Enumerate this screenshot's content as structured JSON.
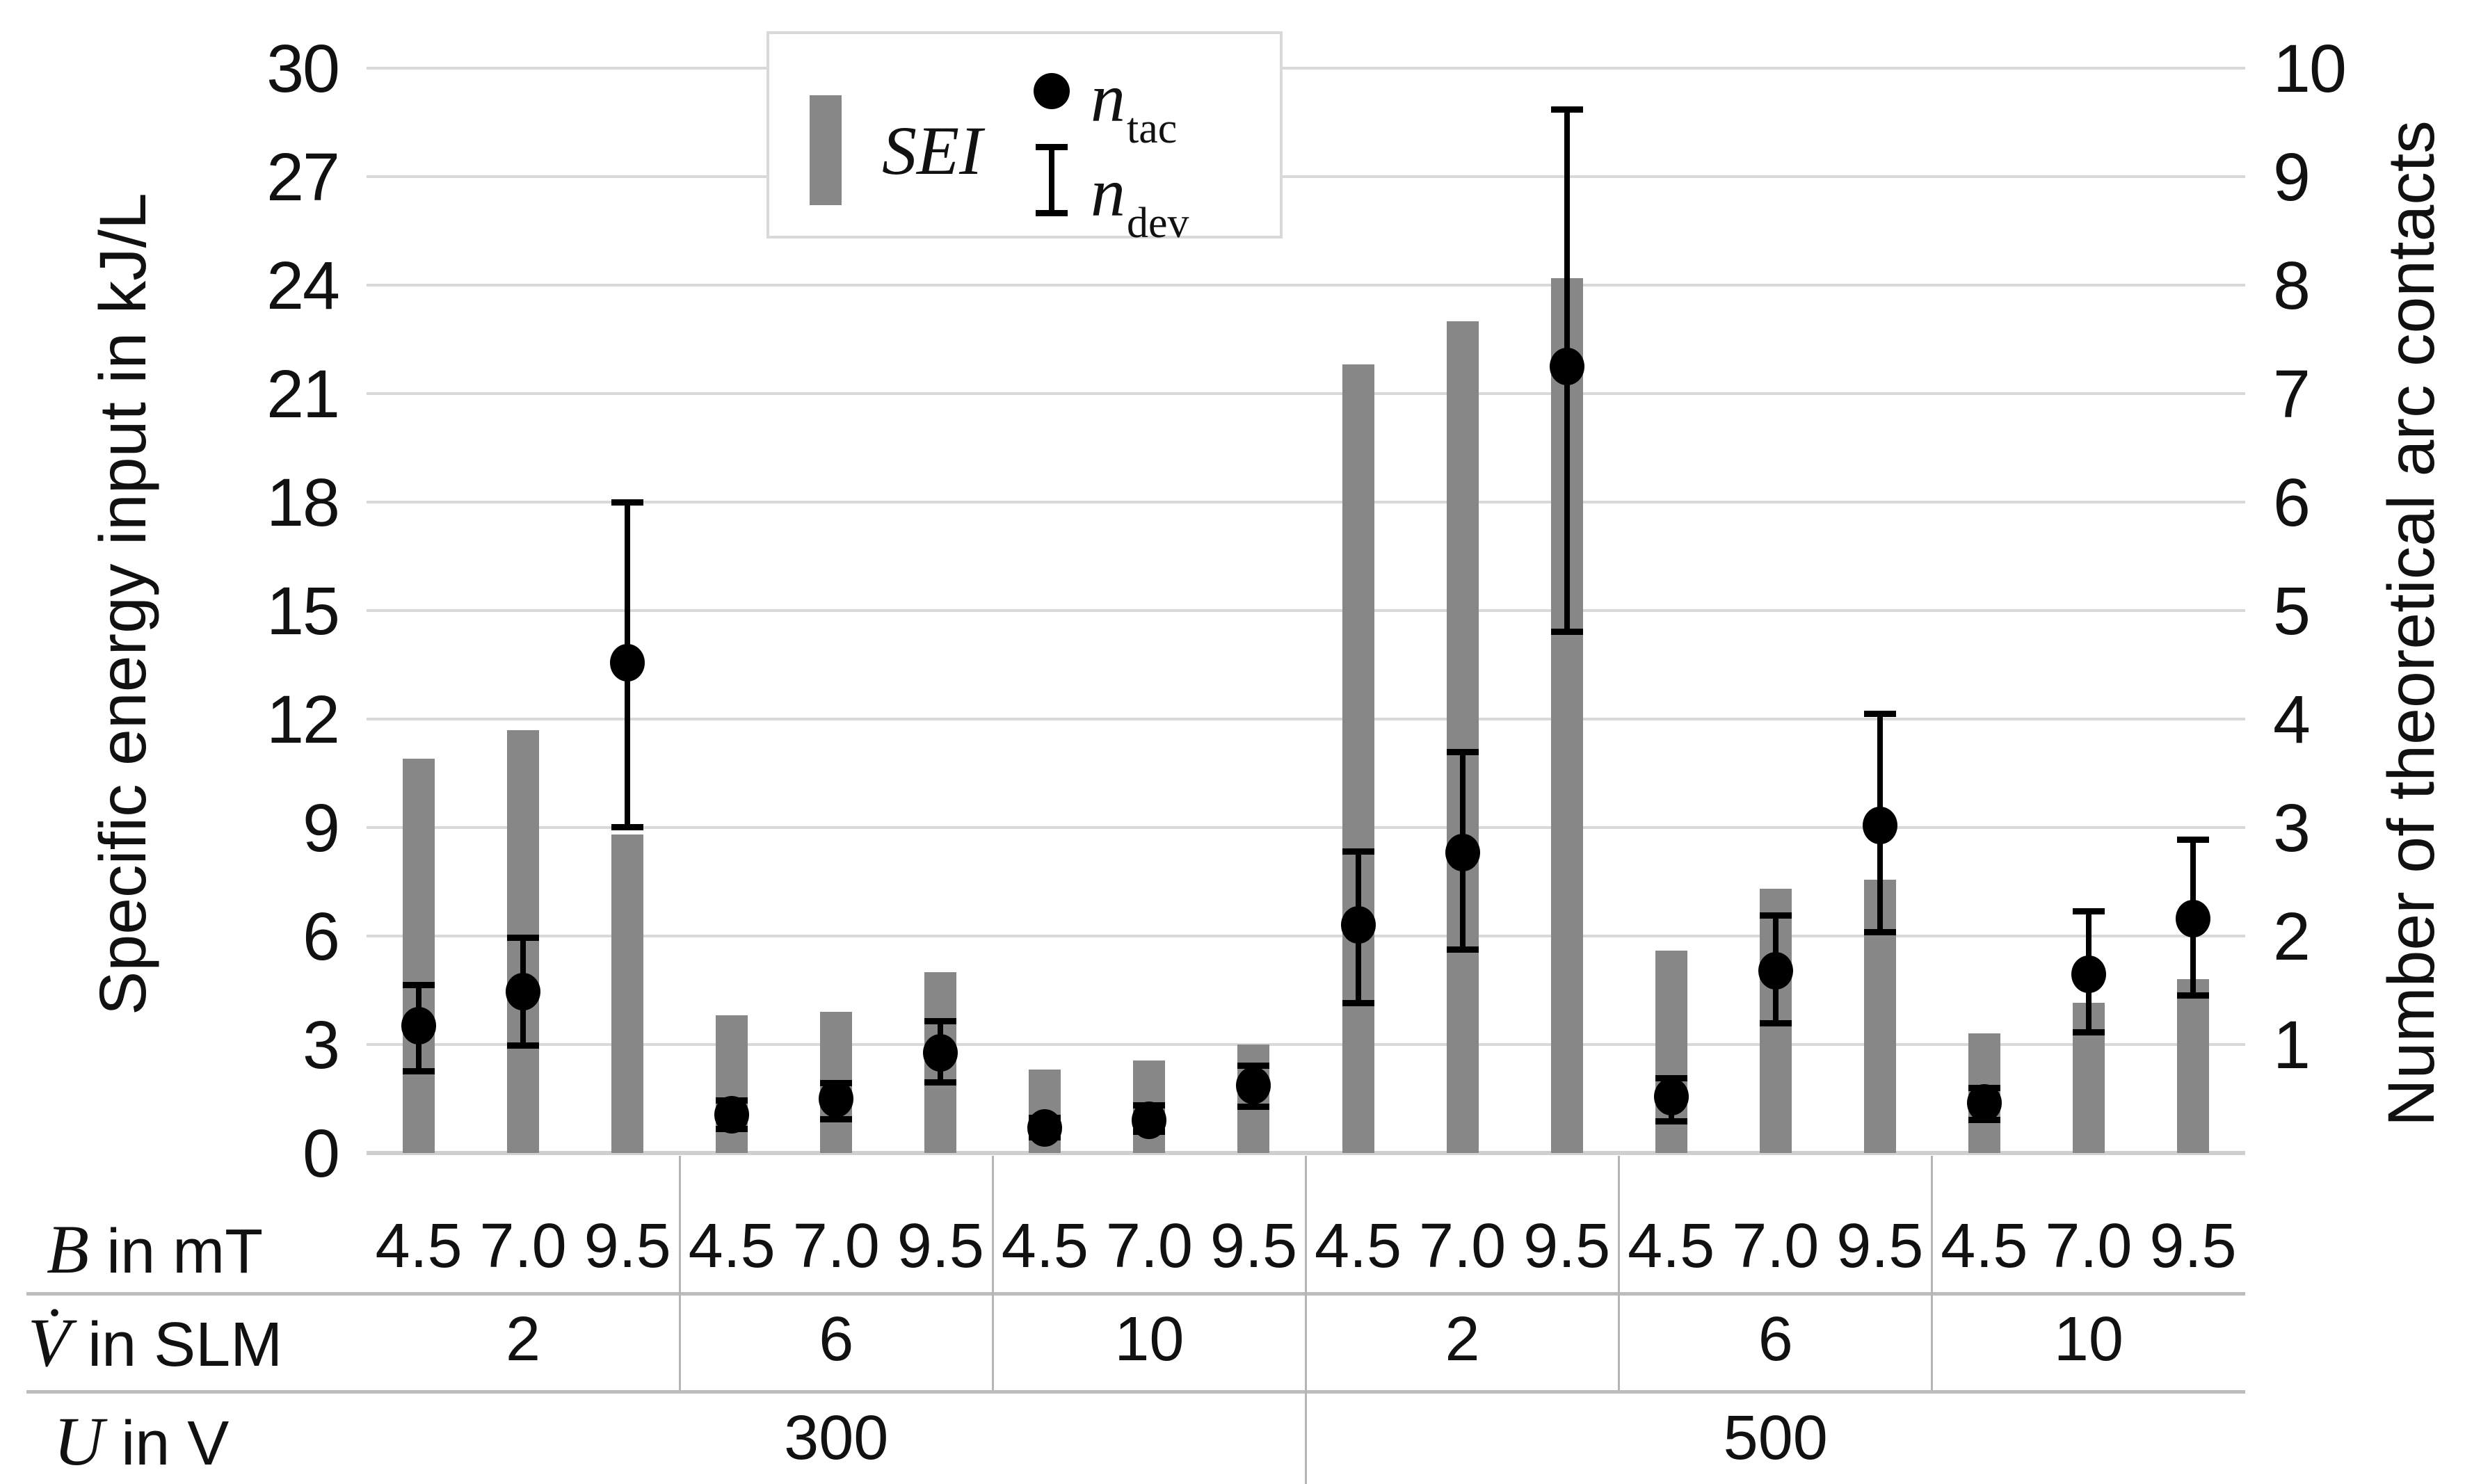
{
  "figure": {
    "kind": "grouped bar chart with secondary-axis scatter markers and error bars",
    "background": "#ffffff"
  },
  "colors": {
    "bar": "#878787",
    "marker": "#000000",
    "grid": "#d9d9d9",
    "axis_zero_line": "#cfcfcf",
    "table_line": "#bcbcbc",
    "divider_line": "#b5b5b5",
    "legend_border": "#d9d9d9",
    "text": "#111111"
  },
  "legend": {
    "items": [
      {
        "swatch": "bar",
        "label": "SEI"
      },
      {
        "swatch": "dot",
        "label": "n",
        "sub": "tac"
      },
      {
        "swatch": "errorbar",
        "label": "n",
        "sub": "dev"
      }
    ]
  },
  "table": {
    "rows": [
      {
        "symbol": "B",
        "unit": " in mT"
      },
      {
        "symbol": "V̇",
        "unit": " in SLM"
      },
      {
        "symbol": "U",
        "unit": " in V"
      }
    ]
  },
  "chart_data": {
    "type": "bar",
    "title": "",
    "grid": true,
    "legend_position": "top-inside-left",
    "left_axis": {
      "label": "Specific energy input in kJ/L",
      "min": 0,
      "max": 30,
      "step": 3,
      "ticks": [
        0,
        3,
        6,
        9,
        12,
        15,
        18,
        21,
        24,
        27,
        30
      ]
    },
    "right_axis": {
      "label": "Number of theoretical arc contacts",
      "min": 0,
      "max": 10,
      "step": 1,
      "ticks": [
        1,
        2,
        3,
        4,
        5,
        6,
        7,
        8,
        9,
        10
      ]
    },
    "categories_B_mT": [
      "4.5",
      "7.0",
      "9.5",
      "4.5",
      "7.0",
      "9.5",
      "4.5",
      "7.0",
      "9.5",
      "4.5",
      "7.0",
      "9.5",
      "4.5",
      "7.0",
      "9.5",
      "4.5",
      "7.0",
      "9.5"
    ],
    "group_V_SLM": [
      "2",
      "6",
      "10",
      "2",
      "6",
      "10"
    ],
    "group_U_V": [
      "300",
      "500"
    ],
    "series": [
      {
        "name": "SEI",
        "type": "bar",
        "axis": "left",
        "unit": "kJ/L",
        "values": [
          10.9,
          11.7,
          8.8,
          3.8,
          3.9,
          5.0,
          2.3,
          2.55,
          3.0,
          21.8,
          23.0,
          24.2,
          5.6,
          7.3,
          7.55,
          3.3,
          4.15,
          4.8
        ]
      },
      {
        "name": "n_tac",
        "type": "scatter",
        "axis": "right",
        "unit": "contacts",
        "values": [
          1.17,
          1.49,
          4.52,
          0.35,
          0.5,
          0.92,
          0.23,
          0.3,
          0.62,
          2.1,
          2.77,
          7.25,
          0.52,
          1.68,
          3.02,
          0.46,
          1.65,
          2.16
        ]
      },
      {
        "name": "n_dev",
        "type": "errorbar",
        "axis": "right",
        "unit": "contacts",
        "low": [
          0.75,
          0.99,
          3.0,
          0.22,
          0.31,
          0.65,
          0.14,
          0.19,
          0.42,
          1.38,
          1.87,
          4.8,
          0.29,
          1.19,
          2.03,
          0.3,
          1.11,
          1.45
        ],
        "high": [
          1.55,
          1.99,
          6.0,
          0.49,
          0.65,
          1.22,
          0.33,
          0.44,
          0.81,
          2.78,
          3.7,
          9.62,
          0.69,
          2.19,
          4.05,
          0.6,
          2.23,
          2.89
        ]
      }
    ]
  }
}
